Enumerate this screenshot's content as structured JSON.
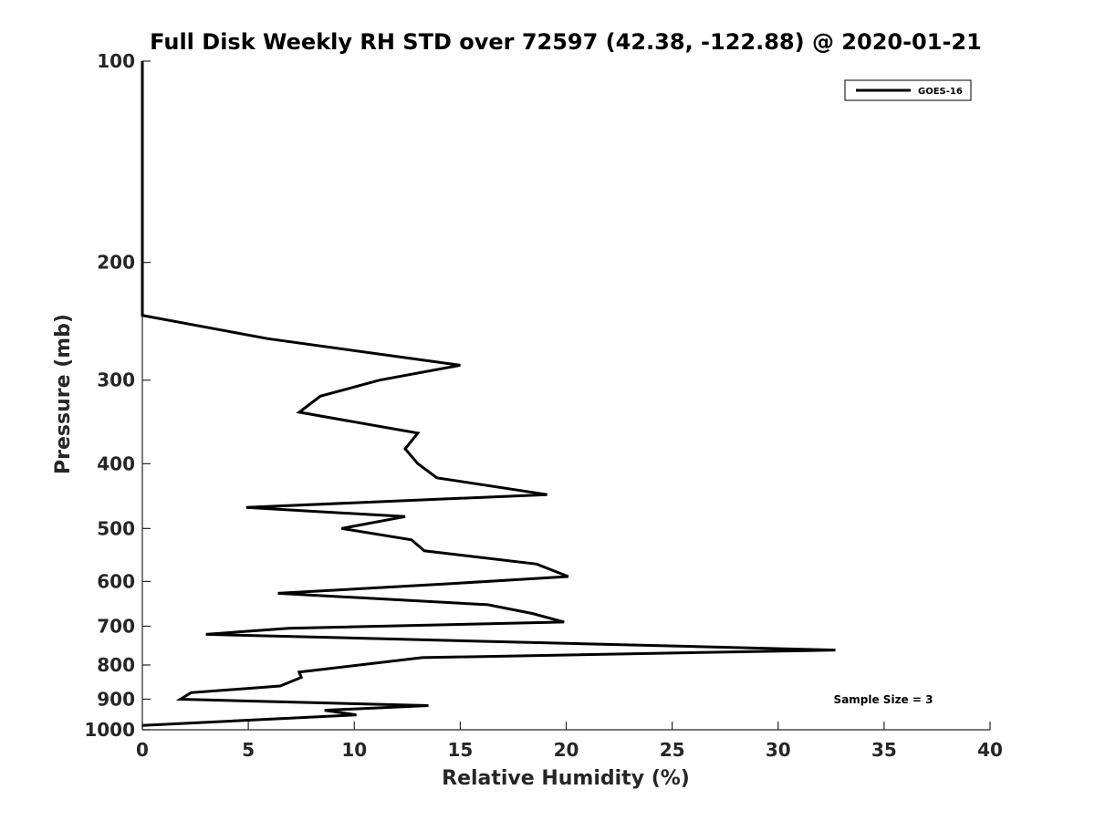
{
  "chart_data": {
    "type": "line",
    "title": "Full Disk Weekly RH STD over 72597 (42.38, -122.88) @ 2020-01-21",
    "xlabel": "Relative Humidity (%)",
    "ylabel": "Pressure (mb)",
    "xlim": [
      0,
      40
    ],
    "ylim": [
      100,
      1000
    ],
    "y_scale": "log",
    "y_reversed": true,
    "x_ticks": [
      0,
      5,
      10,
      15,
      20,
      25,
      30,
      35,
      40
    ],
    "y_ticks": [
      100,
      200,
      300,
      400,
      500,
      600,
      700,
      800,
      900,
      1000
    ],
    "grid": false,
    "legend_position": "top-right",
    "series": [
      {
        "name": "GOES-16",
        "color": "#000000",
        "points": [
          {
            "x": 0.0,
            "y": 100
          },
          {
            "x": 0.0,
            "y": 150
          },
          {
            "x": 0.0,
            "y": 200
          },
          {
            "x": 0.0,
            "y": 240
          },
          {
            "x": 5.9,
            "y": 260
          },
          {
            "x": 15.0,
            "y": 285
          },
          {
            "x": 11.2,
            "y": 300
          },
          {
            "x": 8.4,
            "y": 317
          },
          {
            "x": 7.4,
            "y": 335
          },
          {
            "x": 13.0,
            "y": 360
          },
          {
            "x": 12.4,
            "y": 380
          },
          {
            "x": 13.0,
            "y": 400
          },
          {
            "x": 13.9,
            "y": 420
          },
          {
            "x": 19.1,
            "y": 445
          },
          {
            "x": 4.9,
            "y": 465
          },
          {
            "x": 12.4,
            "y": 480
          },
          {
            "x": 9.4,
            "y": 500
          },
          {
            "x": 12.7,
            "y": 520
          },
          {
            "x": 13.3,
            "y": 540
          },
          {
            "x": 18.6,
            "y": 565
          },
          {
            "x": 20.1,
            "y": 590
          },
          {
            "x": 14.4,
            "y": 605
          },
          {
            "x": 6.4,
            "y": 625
          },
          {
            "x": 16.3,
            "y": 650
          },
          {
            "x": 18.4,
            "y": 670
          },
          {
            "x": 19.9,
            "y": 690
          },
          {
            "x": 6.9,
            "y": 705
          },
          {
            "x": 3.0,
            "y": 720
          },
          {
            "x": 32.7,
            "y": 760
          },
          {
            "x": 13.2,
            "y": 780
          },
          {
            "x": 7.4,
            "y": 820
          },
          {
            "x": 7.5,
            "y": 835
          },
          {
            "x": 6.5,
            "y": 860
          },
          {
            "x": 2.3,
            "y": 880
          },
          {
            "x": 1.8,
            "y": 900
          },
          {
            "x": 13.5,
            "y": 920
          },
          {
            "x": 8.6,
            "y": 935
          },
          {
            "x": 10.1,
            "y": 950
          },
          {
            "x": 0.0,
            "y": 985
          }
        ]
      }
    ],
    "annotation": "Sample Size = 3"
  }
}
